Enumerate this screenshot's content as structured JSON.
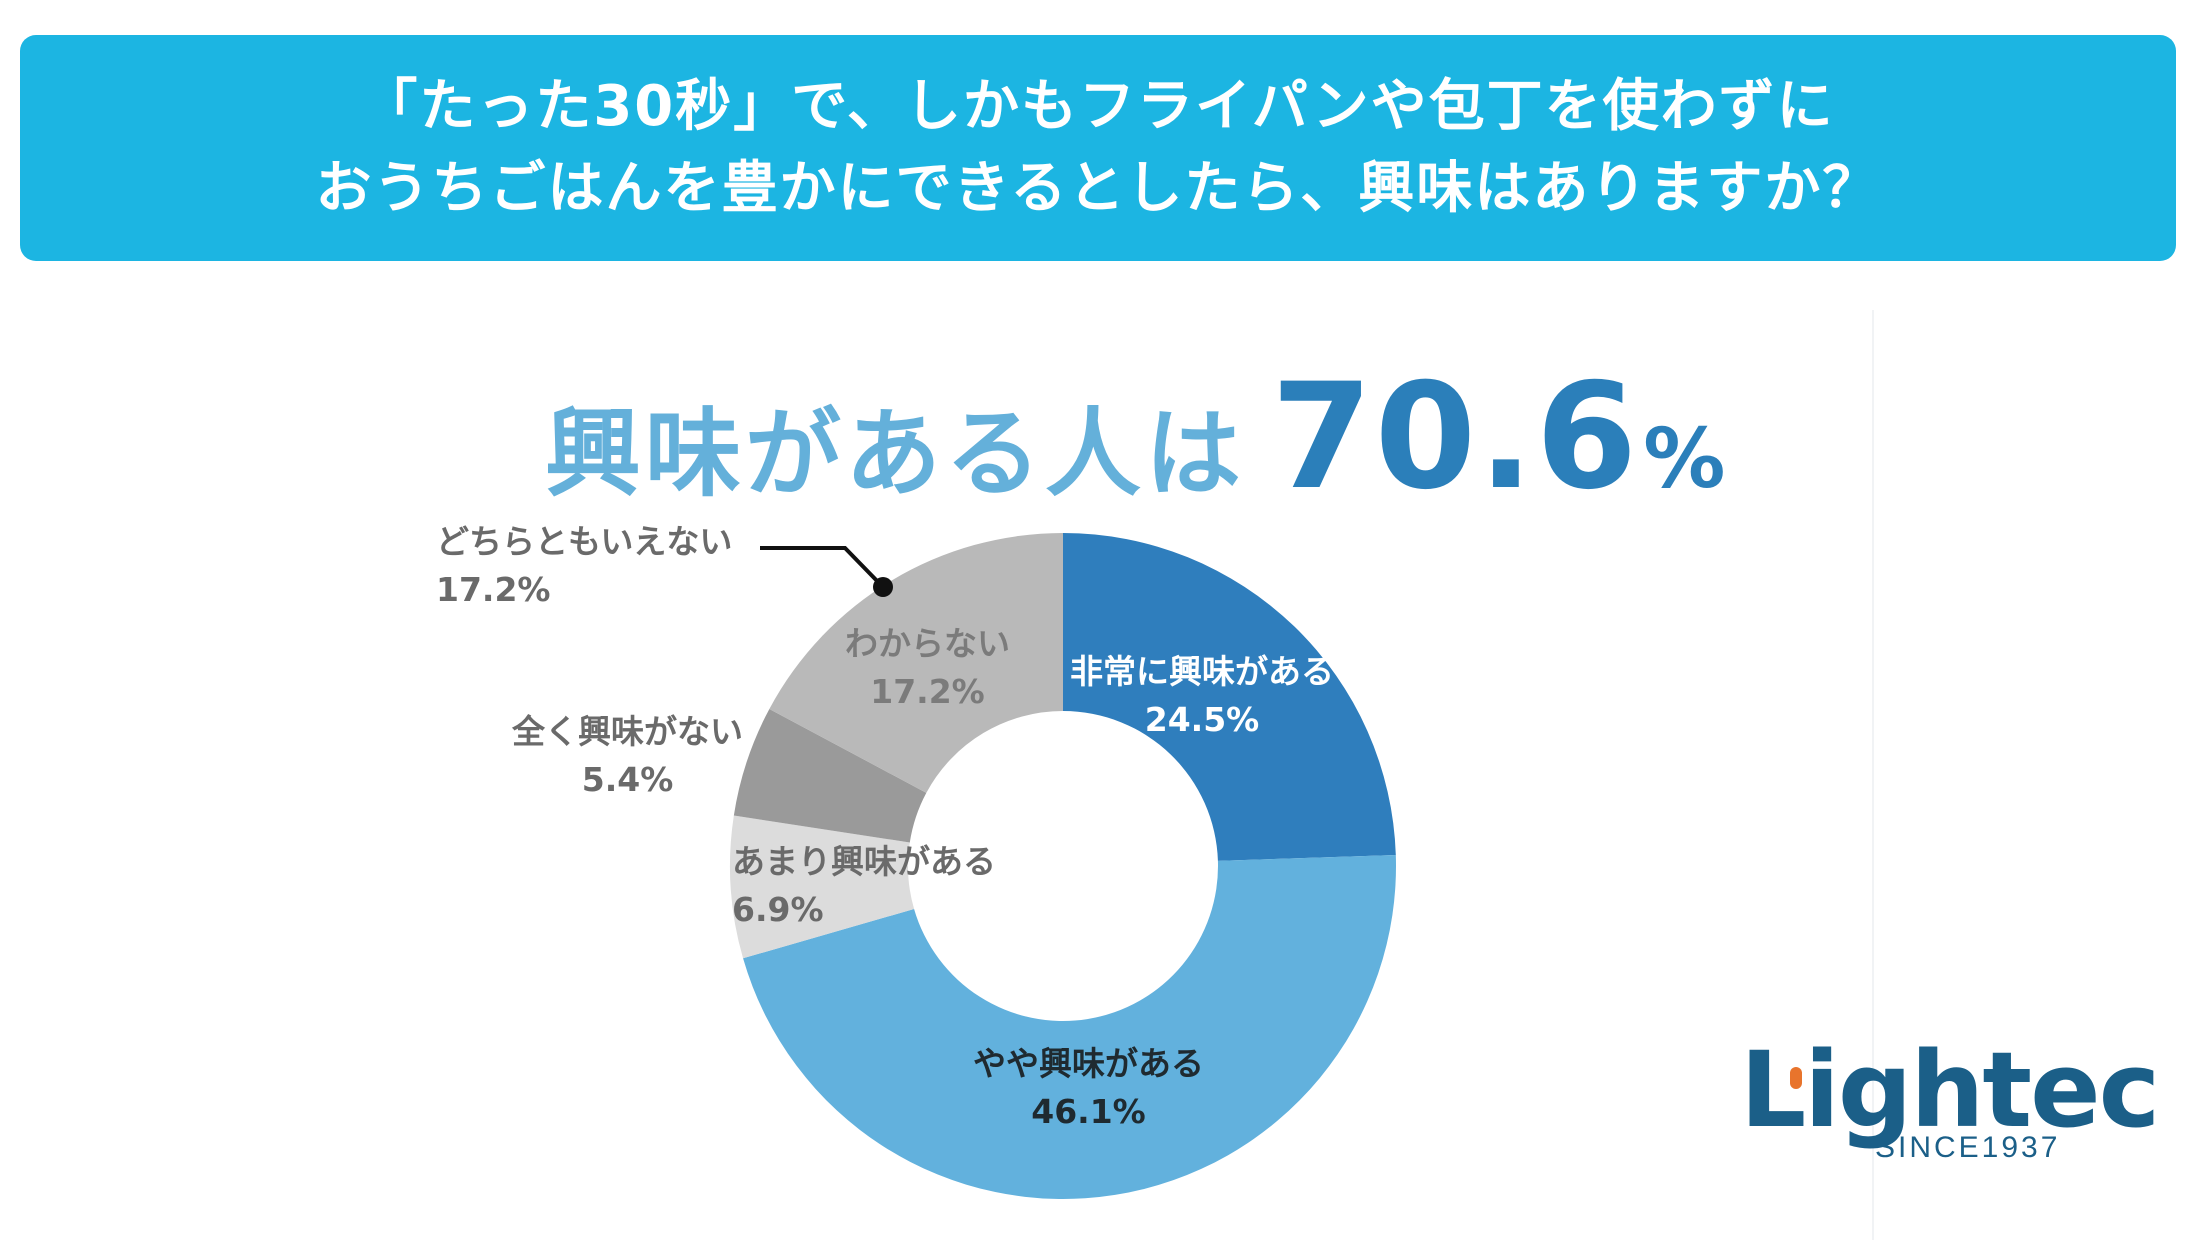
{
  "banner": {
    "line1": "「たった30秒」で、しかもフライパンや包丁を使わずに",
    "line2": "おうちごはんを豊かにできるとしたら、興味はありますか？"
  },
  "headline": {
    "text": "興味がある人は",
    "value": "70.6",
    "unit": "%"
  },
  "chart_data": {
    "type": "pie",
    "donut": true,
    "categories": [
      "非常に興味がある",
      "やや興味がある",
      "あまり興味がある",
      "全く興味がない",
      "わからない"
    ],
    "values": [
      24.5,
      46.1,
      6.9,
      5.4,
      17.2
    ],
    "value_labels": [
      "24.5%",
      "46.1%",
      "6.9%",
      "5.4%",
      "17.2%"
    ],
    "colors": [
      "#2f7ebd",
      "#62b1dd",
      "#dcdcdc",
      "#9a9a9a",
      "#b9b9b9"
    ],
    "label_colors": [
      "#ffffff",
      "#1f2a30",
      "#6a6a6a",
      "#6a6a6a",
      "#7b7b7b"
    ],
    "start_angle_deg": 0,
    "direction": "clockwise",
    "annotation": {
      "text": "どちらともいえない",
      "value": "17.2%"
    }
  },
  "logo": {
    "brand": "Lightec",
    "since": "SINCE1937"
  }
}
